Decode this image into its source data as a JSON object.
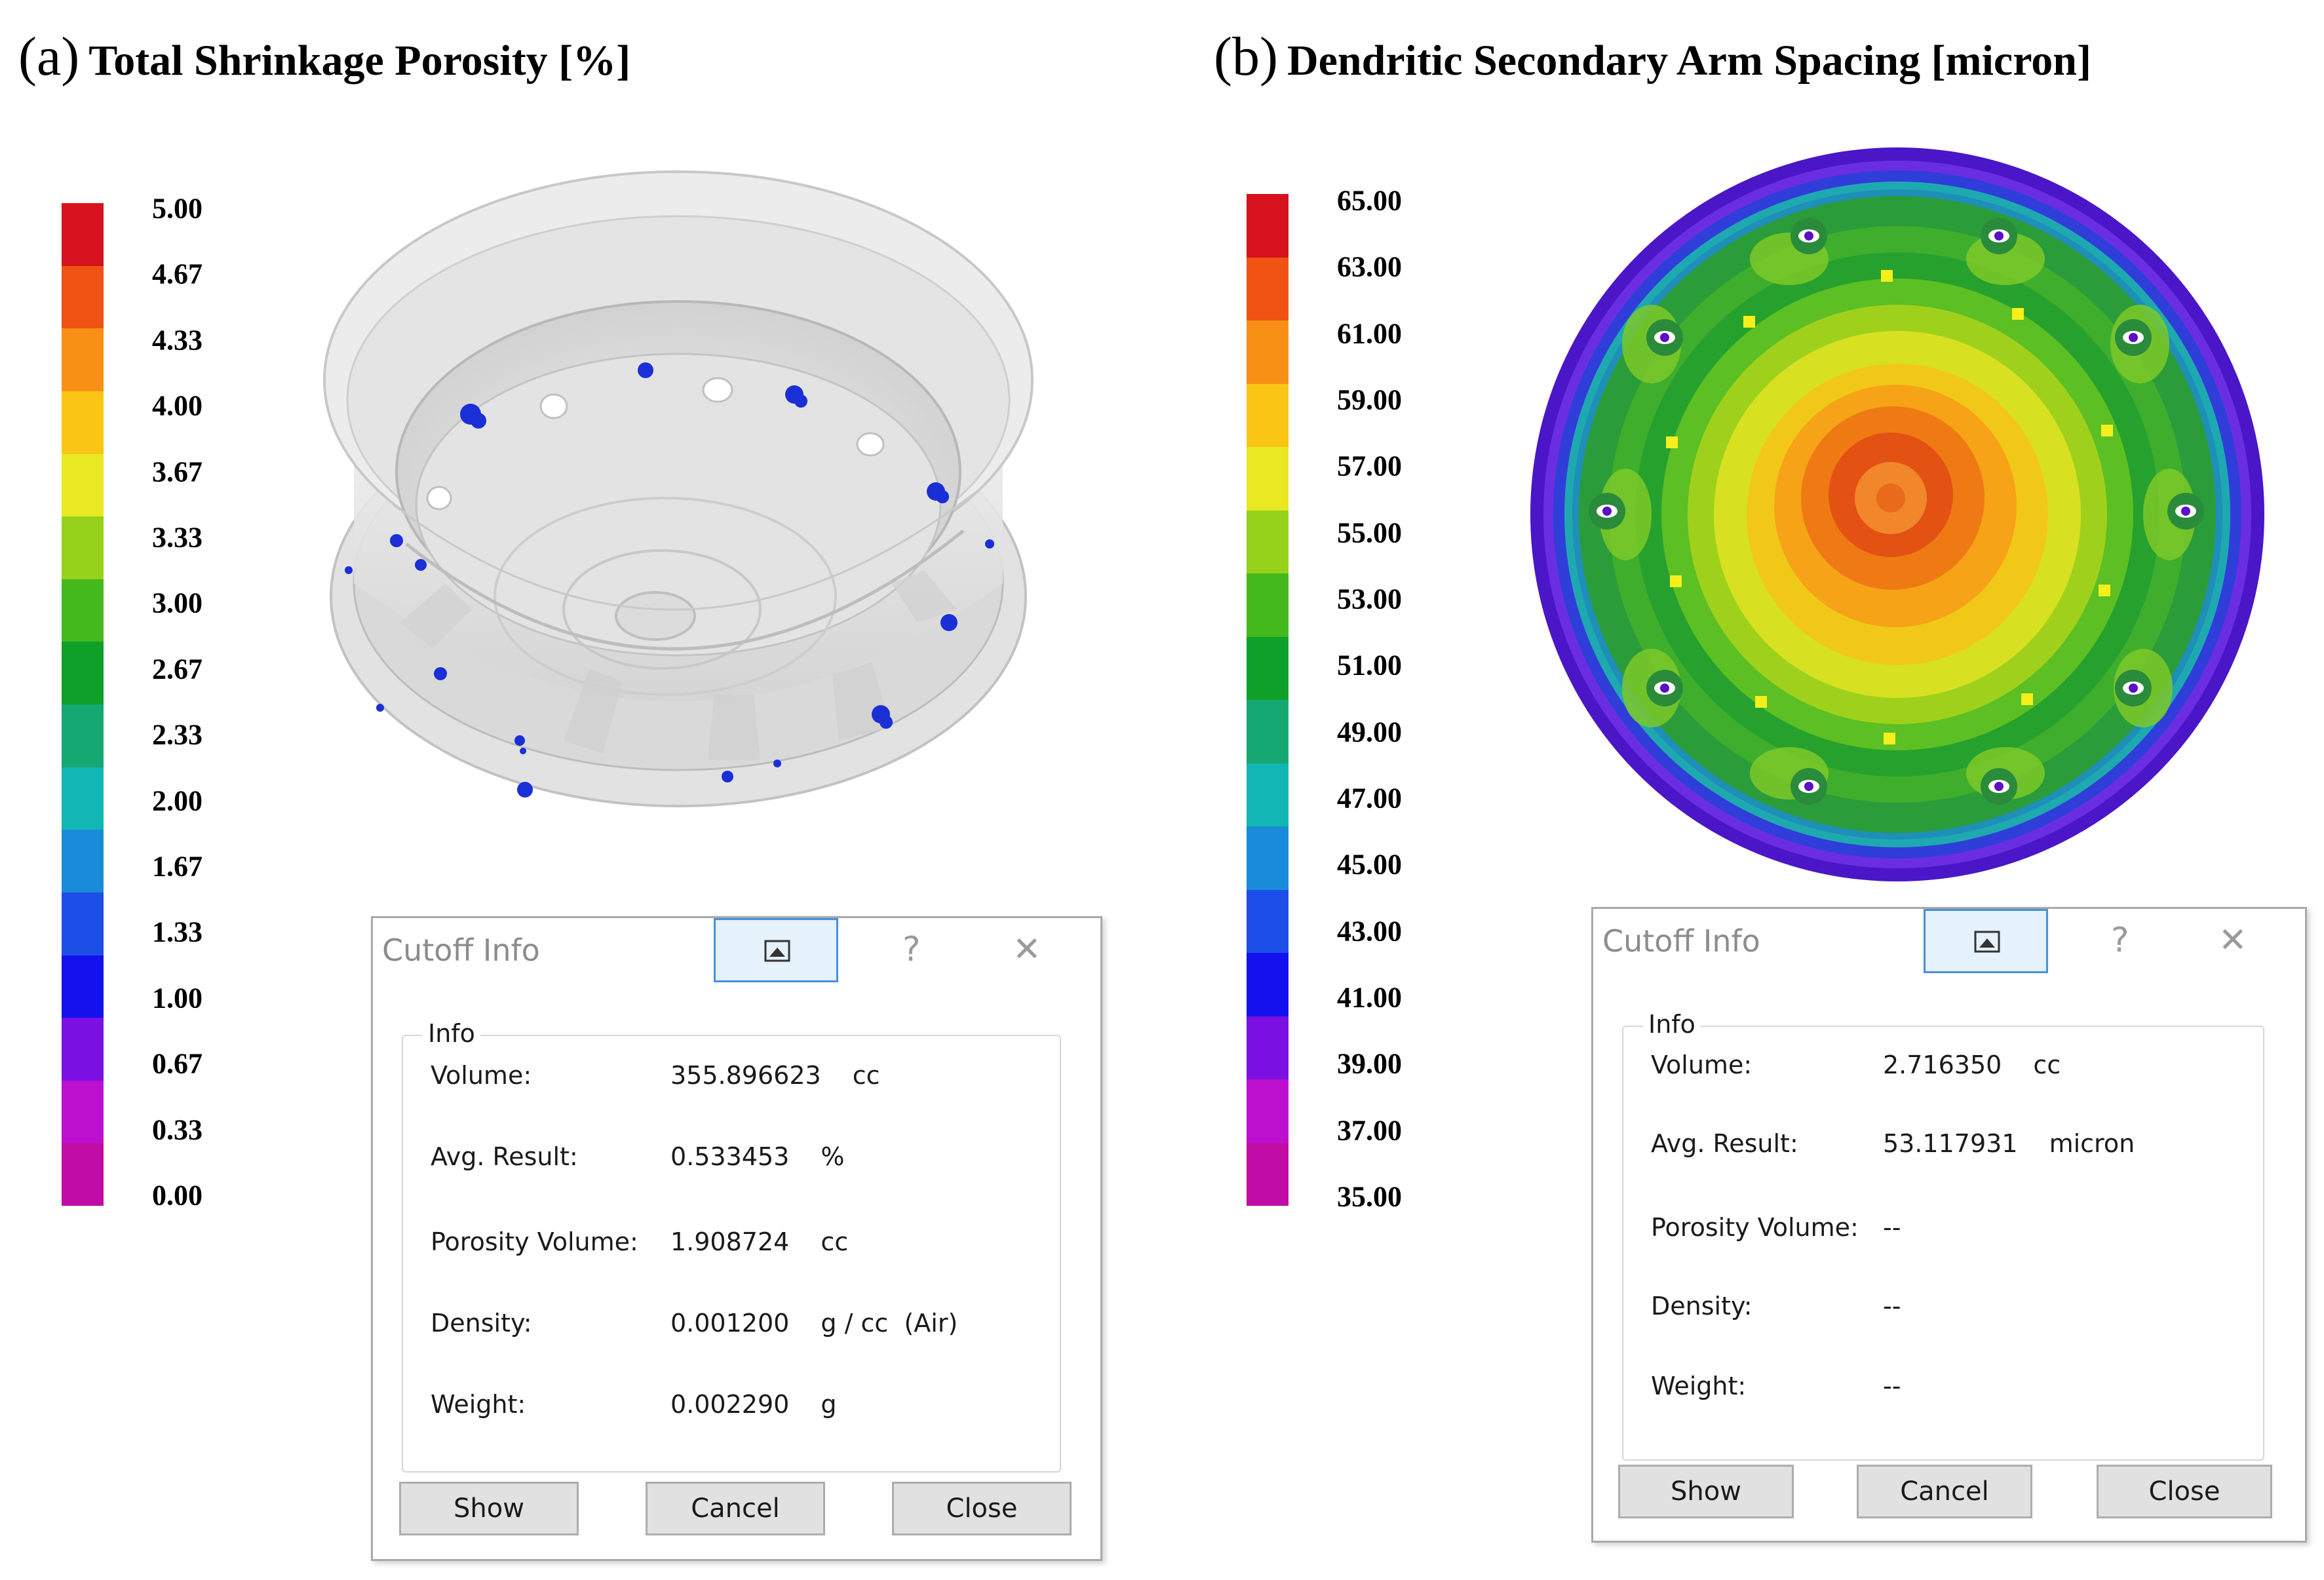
{
  "panel_a": {
    "letter": "(a)",
    "title": "Total Shrinkage Porosity [%]",
    "legend": {
      "colors": [
        "#d6121e",
        "#ef5212",
        "#f99016",
        "#fbc515",
        "#e8e823",
        "#96d21c",
        "#44b91b",
        "#0fa02a",
        "#15a873",
        "#12b6b5",
        "#1a8bd8",
        "#1d4ee8",
        "#1312ee",
        "#7a10e2",
        "#bd10cf",
        "#c10ca6"
      ],
      "labels": [
        "5.00",
        "4.67",
        "4.33",
        "4.00",
        "3.67",
        "3.33",
        "3.00",
        "2.67",
        "2.33",
        "2.00",
        "1.67",
        "1.33",
        "1.00",
        "0.67",
        "0.33",
        "0.00"
      ]
    },
    "dialog": {
      "title": "Cutoff Info",
      "group_label": "Info",
      "rows": [
        {
          "label": "Volume:",
          "value": "355.896623",
          "unit": "cc"
        },
        {
          "label": "Avg. Result:",
          "value": "0.533453",
          "unit": "%"
        },
        {
          "label": "Porosity Volume:",
          "value": "1.908724",
          "unit": "cc"
        },
        {
          "label": "Density:",
          "value": "0.001200",
          "unit": "g / cc  (Air)"
        },
        {
          "label": "Weight:",
          "value": "0.002290",
          "unit": "g"
        }
      ],
      "buttons": {
        "show": "Show",
        "cancel": "Cancel",
        "close": "Close"
      },
      "help_glyph": "?",
      "close_glyph": "✕"
    }
  },
  "panel_b": {
    "letter": "(b)",
    "title": "Dendritic Secondary Arm Spacing [micron]",
    "legend": {
      "colors": [
        "#d6121e",
        "#ef5212",
        "#f99016",
        "#fbc515",
        "#e8e823",
        "#96d21c",
        "#44b91b",
        "#0fa02a",
        "#15a873",
        "#12b6b5",
        "#1a8bd8",
        "#1d4ee8",
        "#1312ee",
        "#7a10e2",
        "#bd10cf",
        "#c10ca6"
      ],
      "labels": [
        "65.00",
        "63.00",
        "61.00",
        "59.00",
        "57.00",
        "55.00",
        "53.00",
        "51.00",
        "49.00",
        "47.00",
        "45.00",
        "43.00",
        "41.00",
        "39.00",
        "37.00",
        "35.00"
      ]
    },
    "dialog": {
      "title": "Cutoff Info",
      "group_label": "Info",
      "rows": [
        {
          "label": "Volume:",
          "value": "2.716350",
          "unit": "cc"
        },
        {
          "label": "Avg. Result:",
          "value": "53.117931",
          "unit": "micron"
        },
        {
          "label": "Porosity Volume:",
          "value": "--",
          "unit": ""
        },
        {
          "label": "Density:",
          "value": "--",
          "unit": ""
        },
        {
          "label": "Weight:",
          "value": "--",
          "unit": ""
        }
      ],
      "buttons": {
        "show": "Show",
        "cancel": "Cancel",
        "close": "Close"
      },
      "help_glyph": "?",
      "close_glyph": "✕"
    }
  }
}
